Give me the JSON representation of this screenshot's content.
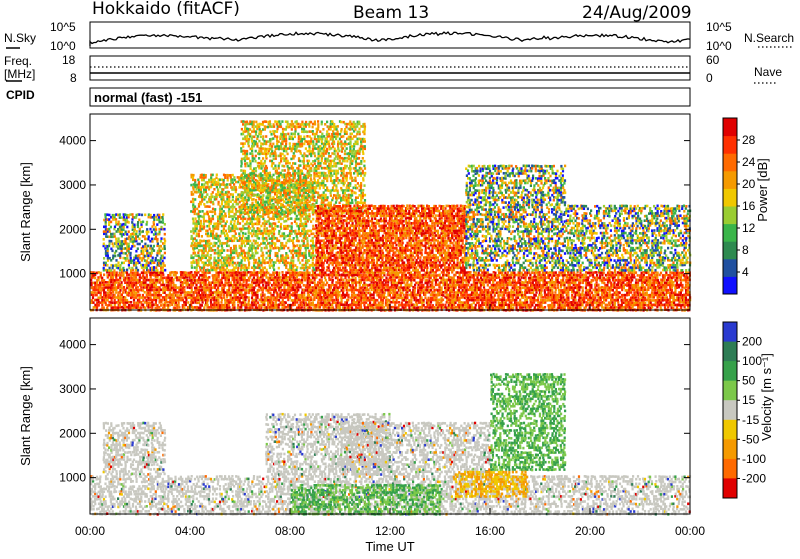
{
  "header": {
    "station": "Hokkaido (fitACF)",
    "beam": "Beam 13",
    "date": "24/Aug/2009"
  },
  "top_panels": {
    "nsky_label": "N.Sky",
    "nsky_ticks": [
      "10^5",
      "10^0"
    ],
    "nsearch_label": "N.Search",
    "nsearch_ticks": [
      "10^5",
      "10^0"
    ],
    "freq_label_1": "Freq.",
    "freq_label_2": "[MHz]",
    "freq_ticks": [
      "18",
      "8"
    ],
    "nave_label": "Nave",
    "nave_ticks": [
      "60",
      "0"
    ],
    "cpid_label": "CPID",
    "cpid_value": "normal (fast) -151"
  },
  "chart_data": [
    {
      "type": "heatmap",
      "name": "power",
      "ylabel": "Slant Range [km]",
      "y_ticks": [
        "1000",
        "2000",
        "3000",
        "4000"
      ],
      "ylim": [
        180,
        4600
      ],
      "xlim": [
        0,
        24
      ],
      "colorbar": {
        "label": "Power [dB]",
        "ticks": [
          "4",
          "8",
          "12",
          "16",
          "20",
          "24",
          "28"
        ],
        "colors": [
          "#1010ff",
          "#2050a0",
          "#2e8a50",
          "#3ab54a",
          "#9acd32",
          "#f0c800",
          "#f59a00",
          "#ff6a00",
          "#ff3000",
          "#e00000"
        ]
      },
      "bands": [
        {
          "t0": 0,
          "t1": 24,
          "r0": 200,
          "r1": 1100,
          "level": "high"
        },
        {
          "t0": 0.5,
          "t1": 3,
          "r0": 1100,
          "r1": 2400,
          "level": "mixed"
        },
        {
          "t0": 4,
          "t1": 9,
          "r0": 1100,
          "r1": 3300,
          "level": "mid"
        },
        {
          "t0": 6,
          "t1": 11,
          "r0": 2400,
          "r1": 4500,
          "level": "mid"
        },
        {
          "t0": 9,
          "t1": 15,
          "r0": 1100,
          "r1": 2600,
          "level": "high"
        },
        {
          "t0": 15,
          "t1": 19,
          "r0": 1100,
          "r1": 3500,
          "level": "mixed"
        },
        {
          "t0": 19,
          "t1": 24,
          "r0": 1100,
          "r1": 2600,
          "level": "mixed"
        }
      ]
    },
    {
      "type": "heatmap",
      "name": "velocity",
      "ylabel": "Slant Range [km]",
      "y_ticks": [
        "1000",
        "2000",
        "3000",
        "4000"
      ],
      "ylim": [
        180,
        4600
      ],
      "xlim": [
        0,
        24
      ],
      "x_ticks": [
        "00:00",
        "04:00",
        "08:00",
        "12:00",
        "16:00",
        "20:00",
        "00:00"
      ],
      "xlabel": "Time UT",
      "colorbar": {
        "label": "Velocity [m s⁻¹]",
        "ticks": [
          "200",
          "100",
          "50",
          "15",
          "-15",
          "-50",
          "-100",
          "-200"
        ],
        "colors": [
          "#2a3ad0",
          "#2e7d55",
          "#36a14a",
          "#7cc84a",
          "#c8c8c0",
          "#f0c800",
          "#f59a00",
          "#ff6a00",
          "#e00000"
        ]
      },
      "bands": [
        {
          "t0": 0,
          "t1": 24,
          "r0": 200,
          "r1": 1100,
          "level": "low"
        },
        {
          "t0": 0.5,
          "t1": 3,
          "r0": 1100,
          "r1": 2300,
          "level": "low"
        },
        {
          "t0": 7,
          "t1": 12,
          "r0": 1100,
          "r1": 2500,
          "level": "low"
        },
        {
          "t0": 10,
          "t1": 16,
          "r0": 1100,
          "r1": 2300,
          "level": "low"
        },
        {
          "t0": 16,
          "t1": 19,
          "r0": 1200,
          "r1": 3400,
          "level": "pos"
        },
        {
          "t0": 8,
          "t1": 14,
          "r0": 200,
          "r1": 900,
          "level": "pos"
        },
        {
          "t0": 14.5,
          "t1": 17.5,
          "r0": 600,
          "r1": 1200,
          "level": "neg"
        }
      ]
    }
  ]
}
